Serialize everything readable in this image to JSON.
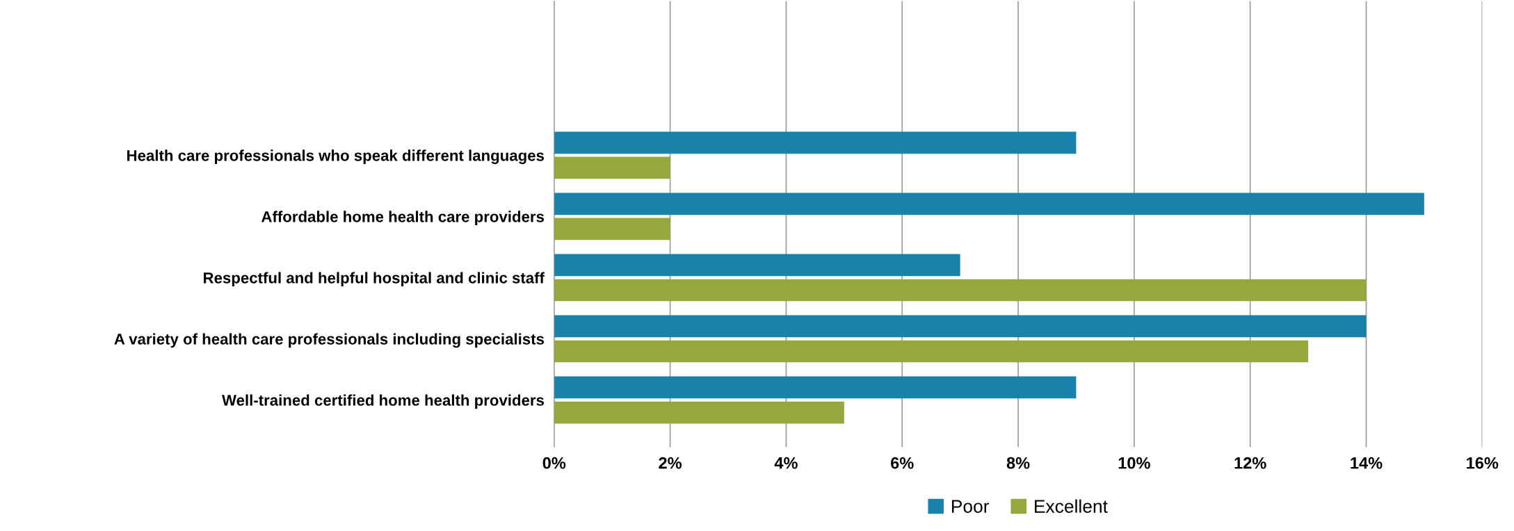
{
  "chart_data": {
    "type": "bar",
    "orientation": "horizontal",
    "categories": [
      "Health care professionals who speak different languages",
      "Affordable home health care providers",
      "Respectful and helpful hospital and clinic staff",
      "A variety of health care professionals including specialists",
      "Well-trained certified home health providers"
    ],
    "series": [
      {
        "name": "Poor",
        "color": "#1a81aa",
        "values": [
          9,
          15,
          7,
          14,
          9
        ]
      },
      {
        "name": "Excellent",
        "color": "#96a83c",
        "values": [
          2,
          2,
          14,
          13,
          5
        ]
      }
    ],
    "xlim": [
      0,
      16
    ],
    "xticks": [
      {
        "value": 0,
        "label": "0%"
      },
      {
        "value": 2,
        "label": "2%"
      },
      {
        "value": 4,
        "label": "4%"
      },
      {
        "value": 6,
        "label": "6%"
      },
      {
        "value": 8,
        "label": "8%"
      },
      {
        "value": 10,
        "label": "10%"
      },
      {
        "value": 12,
        "label": "12%"
      },
      {
        "value": 14,
        "label": "14%"
      },
      {
        "value": 16,
        "label": "16%"
      }
    ],
    "grid": "x",
    "legend": "bottom"
  }
}
